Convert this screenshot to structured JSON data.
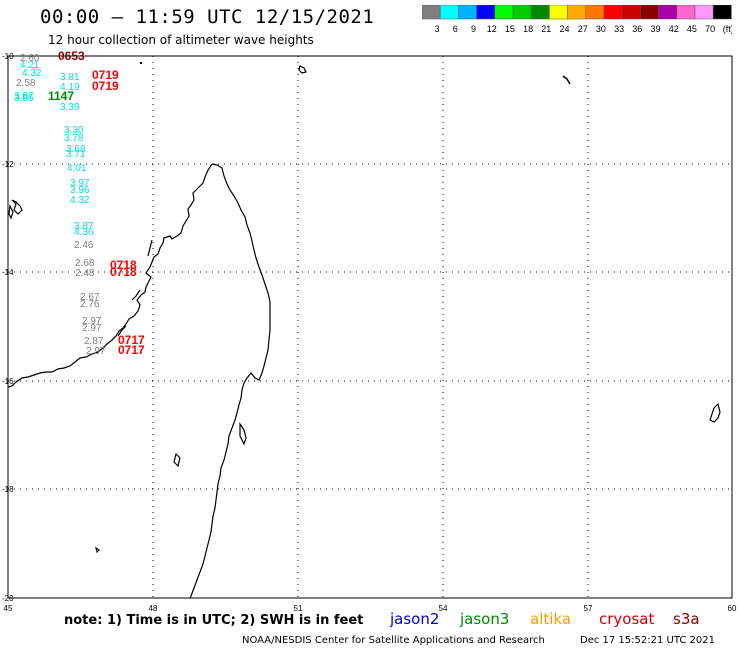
{
  "title": "00:00 – 11:59 UTC 12/15/2021",
  "subtitle": "12 hour collection of altimeter wave heights",
  "scale": {
    "colors": [
      "#7f7f7f",
      "#00ffff",
      "#00b2ff",
      "#0000ff",
      "#00ff00",
      "#00cc00",
      "#008800",
      "#ffff00",
      "#ffaa00",
      "#ff7700",
      "#ff0000",
      "#cc0000",
      "#880000",
      "#aa00aa",
      "#ff66cc",
      "#ff99ff",
      "#000000"
    ],
    "labels": [
      "3",
      "6",
      "9",
      "12",
      "15",
      "18",
      "21",
      "24",
      "27",
      "30",
      "33",
      "36",
      "39",
      "42",
      "45",
      "70",
      "(ft)"
    ]
  },
  "axes": {
    "lon_labels": [
      "45",
      "48",
      "51",
      "54",
      "57",
      "60"
    ],
    "lat_labels": [
      "-10",
      "-12",
      "-14",
      "-16",
      "-18",
      "-20"
    ]
  },
  "observations": [
    {
      "text": "2.60",
      "color": "#7f7f7f"
    },
    {
      "text": "0653",
      "color": "#880000"
    },
    {
      "text": "4.21",
      "color": "#00e0e0"
    },
    {
      "text": "4.32",
      "color": "#00e0e0"
    },
    {
      "text": "2.58",
      "color": "#7f7f7f"
    },
    {
      "text": "3.81",
      "color": "#00e0e0"
    },
    {
      "text": "0719",
      "color": "#ff0000"
    },
    {
      "text": "4.19",
      "color": "#00e0e0"
    },
    {
      "text": "0719",
      "color": "#ff0000"
    },
    {
      "text": "3.87",
      "color": "#00e0e0"
    },
    {
      "text": "3.86",
      "color": "#00e0e0"
    },
    {
      "text": "1147",
      "color": "#008800"
    },
    {
      "text": "3.39",
      "color": "#00e0e0"
    },
    {
      "text": "3.30",
      "color": "#00e0e0"
    },
    {
      "text": "3.78",
      "color": "#00e0e0"
    },
    {
      "text": "3.68",
      "color": "#00e0e0"
    },
    {
      "text": "3.71",
      "color": "#00e0e0"
    },
    {
      "text": "4.01",
      "color": "#00e0e0"
    },
    {
      "text": "3.97",
      "color": "#00e0e0"
    },
    {
      "text": "3.96",
      "color": "#00e0e0"
    },
    {
      "text": "4.32",
      "color": "#00e0e0"
    },
    {
      "text": "3.87",
      "color": "#00e0e0"
    },
    {
      "text": "4.36",
      "color": "#00e0e0"
    },
    {
      "text": "2.46",
      "color": "#7f7f7f"
    },
    {
      "text": "2.68",
      "color": "#7f7f7f"
    },
    {
      "text": "0718",
      "color": "#ff0000"
    },
    {
      "text": "2.48",
      "color": "#7f7f7f"
    },
    {
      "text": "0718",
      "color": "#ff0000"
    },
    {
      "text": "2.67",
      "color": "#7f7f7f"
    },
    {
      "text": "2.76",
      "color": "#7f7f7f"
    },
    {
      "text": "2.97",
      "color": "#7f7f7f"
    },
    {
      "text": "2.97",
      "color": "#7f7f7f"
    },
    {
      "text": "2.87",
      "color": "#7f7f7f"
    },
    {
      "text": "0717",
      "color": "#ff0000"
    },
    {
      "text": "2.97",
      "color": "#7f7f7f"
    },
    {
      "text": "0717",
      "color": "#ff0000"
    }
  ],
  "footer": {
    "note": "note: 1) Time is in UTC; 2) SWH is in feet",
    "satellites": [
      {
        "name": "jason2",
        "color": "#0000cc"
      },
      {
        "name": "jason3",
        "color": "#008800"
      },
      {
        "name": "altika",
        "color": "#ff9900"
      },
      {
        "name": "cryosat",
        "color": "#cc0000"
      },
      {
        "name": "s3a",
        "color": "#880000"
      }
    ],
    "credit": "NOAA/NESDIS Center for Satellite Applications and Research",
    "timestamp": "Dec 17 15:52:21 UTC 2021"
  }
}
